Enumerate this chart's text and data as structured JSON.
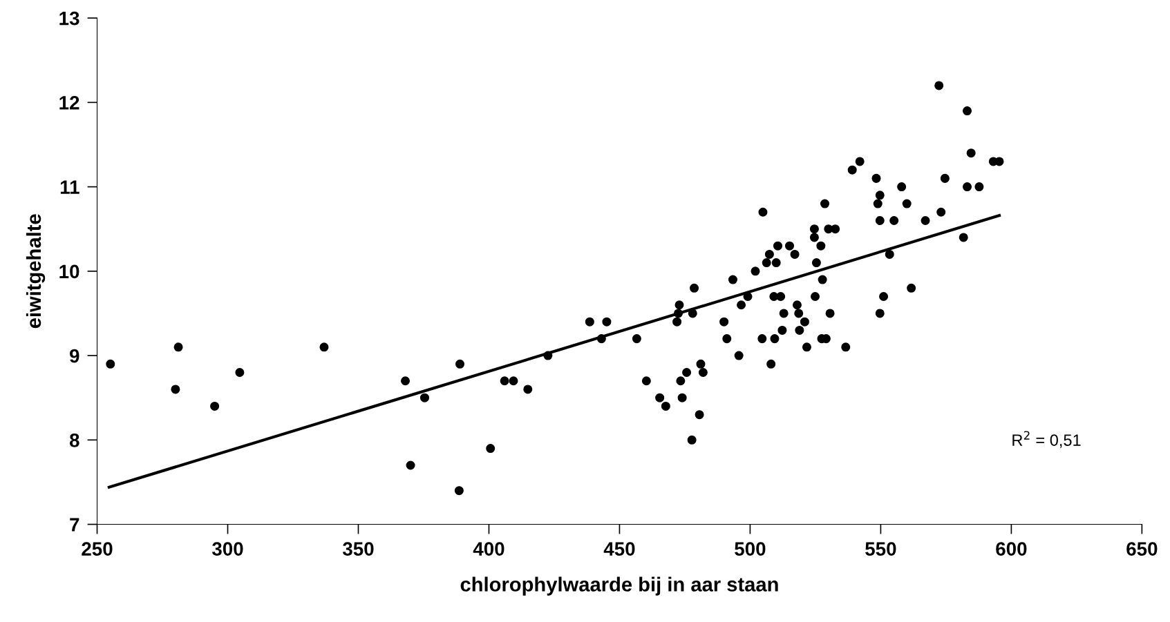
{
  "chart_data": {
    "type": "scatter",
    "xlabel": "chlorophylwaarde bij in aar staan",
    "ylabel": "eiwitgehalte",
    "xlim": [
      250,
      650
    ],
    "xticks": [
      250,
      300,
      350,
      400,
      450,
      500,
      550,
      600,
      650
    ],
    "ylim": [
      7,
      13
    ],
    "yticks": [
      7,
      8,
      9,
      10,
      11,
      12,
      13
    ],
    "grid": false,
    "legend": false,
    "annotations": [
      "R$^{2}$ = 0,51"
    ],
    "series": [
      {
        "color": "#000000",
        "marker": "circle",
        "x": [
          255.1,
          280,
          281.1,
          295,
          304.6,
          336.9,
          368,
          370,
          375.4,
          388.9,
          388.6,
          400.6,
          406,
          409.4,
          414.9,
          422.6,
          438.6,
          443.1,
          445.1,
          456.6,
          460.3,
          465.4,
          467.7,
          472,
          472.9,
          472.5,
          473.4,
          474,
          475.7,
          477.7,
          478,
          478.6,
          480.6,
          481.1,
          482,
          490,
          491.1,
          493.4,
          495.7,
          496.6,
          499.1,
          502,
          504.6,
          504.9,
          506.3,
          507.4,
          508,
          509.1,
          509.4,
          510,
          510.6,
          511.7,
          512.3,
          512.9,
          515.1,
          517.1,
          518,
          518.6,
          518.9,
          520.9,
          521.7,
          524.6,
          524.6,
          524.9,
          525.4,
          527.1,
          527.4,
          527.7,
          528.6,
          529.1,
          530,
          530.6,
          532.6,
          536.6,
          539.1,
          542,
          548.3,
          548.9,
          549.7,
          549.7,
          549.7,
          551.1,
          553.4,
          555.1,
          558,
          560,
          561.7,
          567.1,
          572.3,
          573.1,
          574.6,
          581.7,
          583.1,
          583.1,
          584.6,
          587.7,
          593.1,
          595.4
        ],
        "values": [
          8.9,
          8.6,
          9.1,
          8.4,
          8.8,
          9.1,
          8.7,
          7.7,
          8.5,
          8.9,
          7.4,
          7.9,
          8.7,
          8.7,
          8.6,
          9.0,
          9.4,
          9.2,
          9.4,
          9.2,
          8.7,
          8.5,
          8.4,
          9.4,
          9.6,
          9.5,
          8.7,
          8.5,
          8.8,
          8.0,
          9.5,
          9.8,
          8.3,
          8.9,
          8.8,
          9.4,
          9.2,
          9.9,
          9.0,
          9.6,
          9.7,
          10.0,
          9.2,
          10.7,
          10.1,
          10.2,
          8.9,
          9.7,
          9.2,
          10.1,
          10.3,
          9.7,
          9.3,
          9.5,
          10.3,
          10.2,
          9.6,
          9.5,
          9.3,
          9.4,
          9.1,
          10.5,
          10.4,
          9.7,
          10.1,
          10.3,
          9.2,
          9.9,
          10.8,
          9.2,
          10.5,
          9.5,
          10.5,
          9.1,
          11.2,
          11.3,
          11.1,
          10.8,
          10.9,
          10.6,
          9.5,
          9.7,
          10.2,
          10.6,
          11.0,
          10.8,
          9.8,
          10.6,
          12.2,
          10.7,
          11.1,
          10.4,
          11.9,
          11.0,
          11.4,
          11.0,
          11.3,
          11.3
        ]
      },
      {
        "type": "line",
        "marker": "none",
        "color": "#000000",
        "x": [
          254.6,
          595.4
        ],
        "values": [
          7.44,
          10.66
        ]
      }
    ]
  }
}
